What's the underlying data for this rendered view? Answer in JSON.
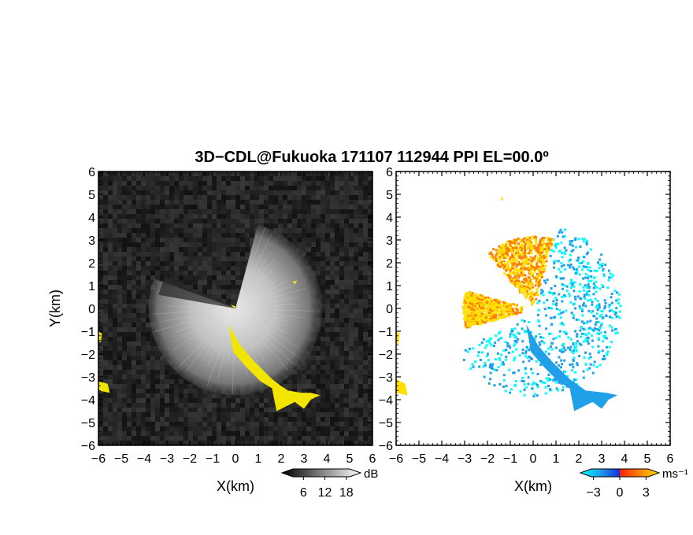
{
  "title": "3D−CDL@Fukuoka 171107 112944 PPI EL=00.0º",
  "chart_data": [
    {
      "type": "heatmap",
      "panel": "left",
      "product": "PPI intensity (greyscale)",
      "xlabel": "X(km)",
      "ylabel": "Y(km)",
      "xlim": [
        -6,
        6
      ],
      "ylim": [
        -6,
        6
      ],
      "x_ticks": [
        "−6",
        "−5",
        "−4",
        "−3",
        "−2",
        "−1",
        "0",
        "1",
        "2",
        "3",
        "4",
        "5",
        "6"
      ],
      "y_ticks": [
        "6",
        "5",
        "4",
        "3",
        "2",
        "1",
        "0",
        "−1",
        "−2",
        "−3",
        "−4",
        "−5",
        "−6"
      ],
      "colorbar": {
        "unit": "dB",
        "ticks": [
          "6",
          "12",
          "18"
        ],
        "range": [
          0,
          22
        ]
      },
      "echo_sector_deg": [
        -200,
        75
      ],
      "echo_max_range_km": 3.8,
      "highlight_color": "#f2e600",
      "highlight_regions_km": [
        [
          [
            -0.3,
            -0.7
          ],
          [
            0.2,
            -1.6
          ],
          [
            0.8,
            -2.3
          ],
          [
            1.6,
            -3.1
          ],
          [
            2.0,
            -3.4
          ],
          [
            2.3,
            -3.6
          ],
          [
            2.9,
            -3.7
          ],
          [
            3.3,
            -3.7
          ],
          [
            3.7,
            -3.8
          ],
          [
            3.3,
            -4.0
          ],
          [
            3.0,
            -4.4
          ],
          [
            2.6,
            -4.1
          ],
          [
            2.2,
            -4.3
          ],
          [
            1.8,
            -4.5
          ],
          [
            1.6,
            -3.5
          ],
          [
            1.1,
            -3.2
          ],
          [
            0.5,
            -2.6
          ],
          [
            -0.1,
            -1.9
          ]
        ],
        [
          [
            -6.0,
            -3.2
          ],
          [
            -5.6,
            -3.3
          ],
          [
            -5.5,
            -3.7
          ],
          [
            -6.0,
            -3.6
          ]
        ],
        [
          [
            -6.0,
            -1.0
          ],
          [
            -5.85,
            -1.1
          ],
          [
            -5.9,
            -1.5
          ],
          [
            -6.0,
            -1.4
          ]
        ],
        [
          [
            2.5,
            1.2
          ],
          [
            2.7,
            1.2
          ],
          [
            2.6,
            1.05
          ]
        ],
        [
          [
            -0.2,
            0.15
          ],
          [
            0.0,
            0.1
          ],
          [
            -0.05,
            0.0
          ]
        ]
      ]
    },
    {
      "type": "heatmap",
      "panel": "right",
      "product": "PPI radial velocity",
      "xlabel": "X(km)",
      "xlim": [
        -6,
        6
      ],
      "ylim": [
        -6,
        6
      ],
      "x_ticks": [
        "−6",
        "−5",
        "−4",
        "−3",
        "−2",
        "−1",
        "0",
        "1",
        "2",
        "3",
        "4",
        "5",
        "6"
      ],
      "y_ticks": [
        "6",
        "5",
        "4",
        "3",
        "2",
        "1",
        "0",
        "−1",
        "−2",
        "−3",
        "−4",
        "−5",
        "−6"
      ],
      "colorbar": {
        "unit": "ms⁻¹",
        "ticks": [
          "−3",
          "0",
          "3"
        ],
        "range": [
          -4.5,
          4.5
        ]
      },
      "colormap": [
        "#00ffff",
        "#1fa0e8",
        "#1030e0",
        "#ff2000",
        "#ff8000",
        "#ffe000"
      ],
      "velocity_field": [
        {
          "sector_deg": [
            -150,
            75
          ],
          "range_km": [
            0.2,
            3.8
          ],
          "velocity_ms": -3,
          "note": "approaching (blue/cyan)"
        },
        {
          "sector_deg": [
            75,
            130
          ],
          "range_km": [
            0.2,
            3.2
          ],
          "velocity_ms": 3,
          "note": "receding (yellow/orange)"
        },
        {
          "sector_deg": [
            165,
            195
          ],
          "range_km": [
            0.5,
            3.1
          ],
          "velocity_ms": 3.5,
          "note": "receding (yellow)"
        }
      ],
      "edge_clusters_km": [
        {
          "points": [
            [
              -0.3,
              -0.7
            ],
            [
              0.2,
              -1.6
            ],
            [
              0.8,
              -2.3
            ],
            [
              1.6,
              -3.1
            ],
            [
              2.3,
              -3.6
            ],
            [
              3.2,
              -3.7
            ],
            [
              3.7,
              -3.8
            ],
            [
              3.3,
              -4.0
            ],
            [
              3.0,
              -4.4
            ],
            [
              2.6,
              -4.1
            ],
            [
              2.2,
              -4.3
            ],
            [
              1.8,
              -4.5
            ],
            [
              1.6,
              -3.5
            ],
            [
              1.1,
              -3.2
            ],
            [
              0.5,
              -2.6
            ],
            [
              -0.1,
              -1.9
            ]
          ],
          "velocity_ms": -3
        },
        {
          "points": [
            [
              -6.0,
              -3.1
            ],
            [
              -5.6,
              -3.3
            ],
            [
              -5.5,
              -3.8
            ],
            [
              -6.0,
              -3.7
            ]
          ],
          "velocity_ms": 3
        },
        {
          "points": [
            [
              -6.0,
              -1.0
            ],
            [
              -5.85,
              -1.1
            ],
            [
              -5.9,
              -1.6
            ],
            [
              -6.0,
              -1.5
            ]
          ],
          "velocity_ms": 3
        },
        {
          "points": [
            [
              -1.9,
              -2.4
            ],
            [
              -1.7,
              -2.4
            ],
            [
              -1.8,
              -2.7
            ],
            [
              -1.95,
              -2.6
            ]
          ],
          "velocity_ms": -3
        },
        {
          "points": [
            [
              -1.45,
              4.85
            ],
            [
              -1.3,
              4.85
            ],
            [
              -1.35,
              4.7
            ]
          ],
          "velocity_ms": 3
        }
      ]
    }
  ]
}
